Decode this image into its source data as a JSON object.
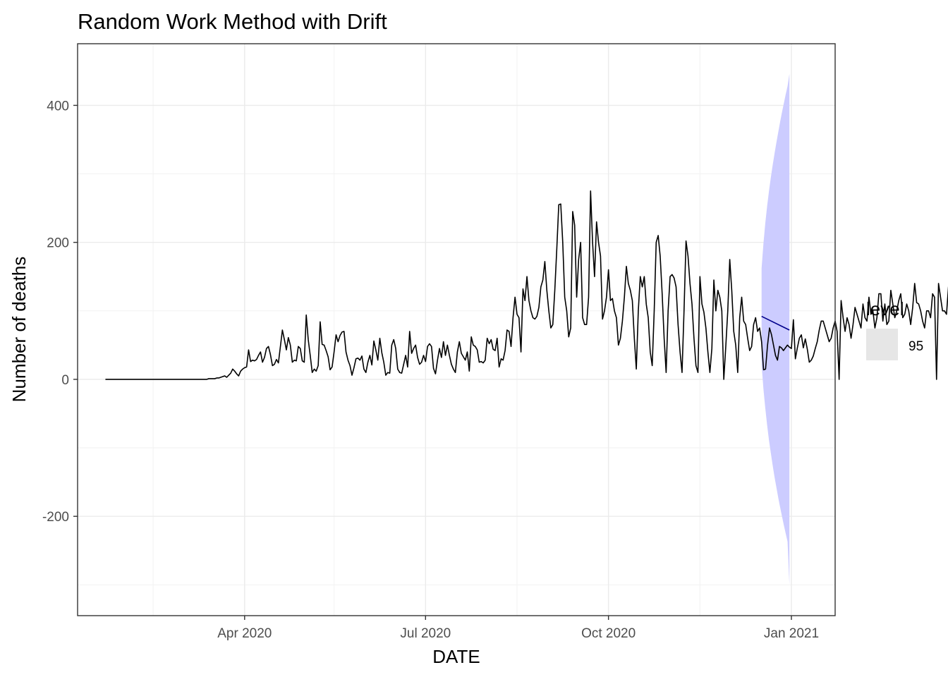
{
  "chart_data": {
    "type": "line",
    "title": "Random Work Method with Drift",
    "xlabel": "DATE",
    "ylabel": "Number of deaths",
    "xlim": [
      "2020-01-08",
      "2021-01-23"
    ],
    "ylim": [
      -345,
      490
    ],
    "grid": true,
    "x_ticks": [
      {
        "date": "2020-04-01",
        "label": "Apr 2020"
      },
      {
        "date": "2020-07-01",
        "label": "Jul 2020"
      },
      {
        "date": "2020-10-01",
        "label": "Oct 2020"
      },
      {
        "date": "2021-01-01",
        "label": "Jan 2021"
      }
    ],
    "x_minor_ticks": [
      "2020-02-15",
      "2020-05-16",
      "2020-08-16",
      "2020-11-16"
    ],
    "y_ticks": [
      -200,
      0,
      200,
      400
    ],
    "y_minor_ticks": [
      -300,
      -100,
      100,
      300
    ],
    "legend": {
      "title": "level",
      "position": "right",
      "entries": [
        {
          "label": "95",
          "color": "#e6e6e6"
        }
      ]
    },
    "colors": {
      "observed": "#000000",
      "forecast": "#00008b",
      "interval": "#ccccff"
    },
    "series": [
      {
        "role": "observed",
        "start": "2020-01-22",
        "values": [
          0,
          0,
          0,
          0,
          0,
          0,
          0,
          0,
          0,
          0,
          0,
          0,
          0,
          0,
          0,
          0,
          0,
          0,
          0,
          0,
          0,
          0,
          0,
          0,
          0,
          0,
          0,
          0,
          0,
          0,
          0,
          0,
          0,
          0,
          0,
          0,
          0,
          0,
          0,
          0,
          0,
          0,
          0,
          0,
          0,
          0,
          0,
          0,
          0,
          0,
          0,
          0,
          1,
          1,
          1,
          1,
          2,
          2,
          3,
          4,
          5,
          3,
          6,
          9,
          15,
          12,
          8,
          5,
          12,
          15,
          17,
          18,
          43,
          26,
          28,
          27,
          29,
          35,
          40,
          25,
          32,
          45,
          48,
          36,
          20,
          22,
          29,
          24,
          48,
          72,
          58,
          43,
          61,
          50,
          25,
          28,
          27,
          48,
          45,
          27,
          25,
          94,
          58,
          35,
          10,
          15,
          12,
          20,
          84,
          51,
          50,
          42,
          33,
          14,
          18,
          40,
          65,
          55,
          64,
          69,
          70,
          40,
          28,
          20,
          6,
          17,
          30,
          31,
          28,
          34,
          15,
          10,
          25,
          35,
          21,
          56,
          43,
          28,
          60,
          39,
          25,
          6,
          10,
          9,
          50,
          58,
          45,
          15,
          10,
          9,
          22,
          35,
          18,
          70,
          38,
          45,
          50,
          32,
          22,
          25,
          35,
          26,
          48,
          52,
          48,
          16,
          8,
          28,
          45,
          32,
          55,
          35,
          50,
          35,
          22,
          15,
          10,
          40,
          55,
          38,
          33,
          28,
          40,
          12,
          62,
          50,
          48,
          43,
          25,
          26,
          24,
          28,
          60,
          52,
          58,
          44,
          42,
          60,
          18,
          30,
          28,
          42,
          72,
          70,
          48,
          90,
          120,
          95,
          90,
          40,
          132,
          115,
          150,
          115,
          100,
          90,
          88,
          92,
          105,
          135,
          145,
          172,
          130,
          100,
          75,
          80,
          130,
          190,
          255,
          256,
          200,
          120,
          100,
          62,
          75,
          245,
          225,
          120,
          175,
          200,
          90,
          80,
          80,
          120,
          275,
          200,
          150,
          230,
          200,
          180,
          88,
          100,
          120,
          160,
          115,
          118,
          100,
          90,
          50,
          60,
          85,
          120,
          165,
          140,
          130,
          115,
          60,
          15,
          100,
          150,
          135,
          150,
          110,
          90,
          40,
          20,
          100,
          200,
          210,
          180,
          125,
          60,
          10,
          100,
          150,
          153,
          148,
          135,
          80,
          40,
          10,
          100,
          202,
          180,
          140,
          110,
          60,
          20,
          10,
          150,
          110,
          98,
          75,
          40,
          10,
          45,
          145,
          100,
          130,
          120,
          100,
          0,
          48,
          100,
          175,
          130,
          70,
          50,
          10,
          90,
          120,
          85,
          80,
          60,
          42,
          48,
          80,
          90,
          70,
          75,
          55,
          14,
          15,
          50,
          75,
          65,
          50,
          35,
          28,
          48,
          46,
          42,
          46,
          50,
          47,
          45,
          87,
          30,
          46,
          60,
          65,
          46,
          59,
          44,
          25,
          28,
          34,
          45,
          55,
          72,
          85,
          85,
          75,
          65,
          55,
          60,
          75,
          85,
          70,
          0,
          115,
          90,
          70,
          90,
          80,
          60,
          80,
          105,
          95,
          85,
          75,
          110,
          90,
          85,
          120,
          95,
          100,
          75,
          90,
          125,
          125,
          85,
          110,
          80,
          85,
          130,
          110,
          90,
          100,
          115,
          125,
          90,
          95,
          110,
          100,
          80,
          105,
          140,
          112,
          110,
          100,
          85,
          75,
          100,
          100,
          90,
          125,
          120,
          0,
          140,
          120,
          100,
          100,
          95,
          135,
          130
        ]
      },
      {
        "role": "forecast",
        "start": "2020-12-17",
        "end": "2020-12-31",
        "from": 92,
        "to": 72
      }
    ],
    "interval": {
      "level": "95",
      "start": "2020-12-17",
      "end": "2020-12-31",
      "upper": [
        162,
        198,
        228,
        253,
        275,
        295,
        313,
        330,
        346,
        361,
        376,
        390,
        403,
        416,
        428,
        446
      ],
      "lower": [
        22,
        -14,
        -42,
        -67,
        -89,
        -108,
        -126,
        -143,
        -158,
        -173,
        -187,
        -200,
        -213,
        -225,
        -237,
        -300
      ]
    }
  }
}
